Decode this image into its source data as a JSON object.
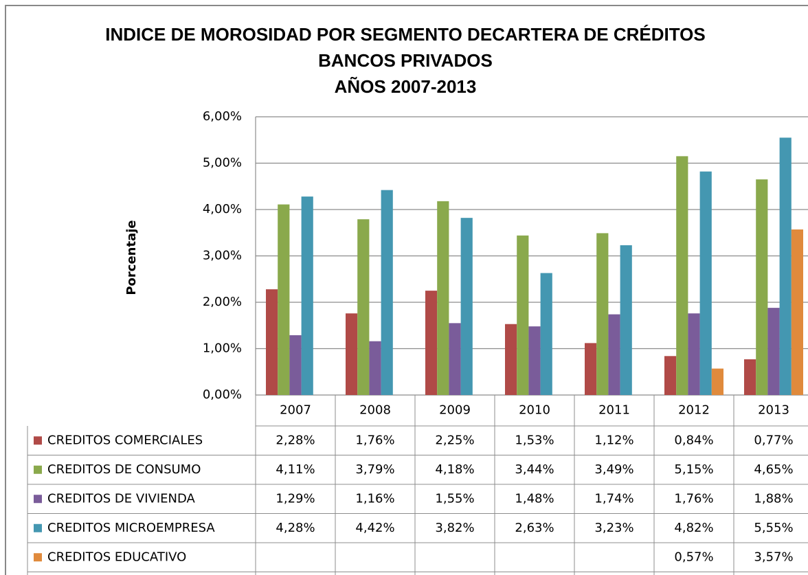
{
  "chart_data": {
    "type": "bar",
    "title": [
      "INDICE DE MOROSIDAD POR SEGMENTO DECARTERA DE CRÉDITOS",
      "BANCOS PRIVADOS",
      "AÑOS 2007-2013"
    ],
    "y_label": "Porcentaje",
    "categories": [
      "2007",
      "2008",
      "2009",
      "2010",
      "2011",
      "2012",
      "2013"
    ],
    "series": [
      {
        "name": "CREDITOS COMERCIALES",
        "color": "#b04a47",
        "values": [
          2.28,
          1.76,
          2.25,
          1.53,
          1.12,
          0.84,
          0.77
        ],
        "value_labels": [
          "2,28%",
          "1,76%",
          "2,25%",
          "1,53%",
          "1,12%",
          "0,84%",
          "0,77%"
        ]
      },
      {
        "name": "CREDITOS DE CONSUMO",
        "color": "#8aa94c",
        "values": [
          4.11,
          3.79,
          4.18,
          3.44,
          3.49,
          5.15,
          4.65
        ],
        "value_labels": [
          "4,11%",
          "3,79%",
          "4,18%",
          "3,44%",
          "3,49%",
          "5,15%",
          "4,65%"
        ]
      },
      {
        "name": "CREDITOS DE VIVIENDA",
        "color": "#7a5c9a",
        "values": [
          1.29,
          1.16,
          1.55,
          1.48,
          1.74,
          1.76,
          1.88
        ],
        "value_labels": [
          "1,29%",
          "1,16%",
          "1,55%",
          "1,48%",
          "1,74%",
          "1,76%",
          "1,88%"
        ]
      },
      {
        "name": "CREDITOS MICROEMPRESA",
        "color": "#4497b1",
        "values": [
          4.28,
          4.42,
          3.82,
          2.63,
          3.23,
          4.82,
          5.55
        ],
        "value_labels": [
          "4,28%",
          "4,42%",
          "3,82%",
          "2,63%",
          "3,23%",
          "4,82%",
          "5,55%"
        ]
      },
      {
        "name": "CREDITOS EDUCATIVO",
        "color": "#e08a3c",
        "values": [
          null,
          null,
          null,
          null,
          null,
          0.57,
          3.57
        ],
        "value_labels": [
          null,
          null,
          null,
          null,
          null,
          "0,57%",
          "3,57%"
        ]
      }
    ],
    "ylim": [
      0,
      6
    ],
    "yticks": [
      {
        "value": 0,
        "label": "0,00%"
      },
      {
        "value": 1,
        "label": "1,00%"
      },
      {
        "value": 2,
        "label": "2,00%"
      },
      {
        "value": 3,
        "label": "3,00%"
      },
      {
        "value": 4,
        "label": "4,00%"
      },
      {
        "value": 5,
        "label": "5,00%"
      },
      {
        "value": 6,
        "label": "6,00%"
      }
    ],
    "grid": true
  }
}
